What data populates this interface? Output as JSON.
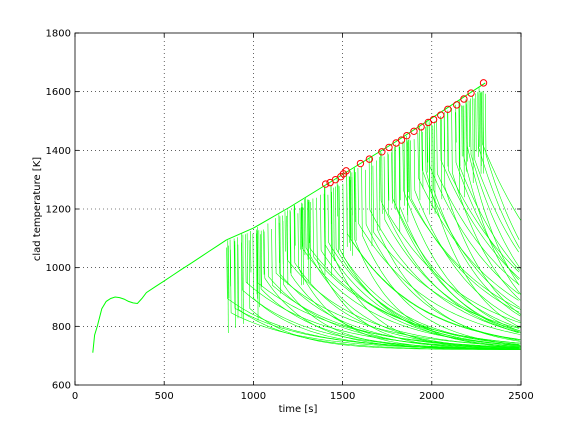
{
  "chart_data": {
    "type": "line",
    "title": "",
    "xlabel": "time [s]",
    "ylabel": "clad temperature [K]",
    "xlim": [
      0,
      2500
    ],
    "ylim": [
      600,
      1800
    ],
    "x_ticks": [
      0,
      500,
      1000,
      1500,
      2000,
      2500
    ],
    "y_ticks": [
      600,
      800,
      1000,
      1200,
      1400,
      1600,
      1800
    ],
    "x_tick_labels": [
      "0",
      "500",
      "1000",
      "1500",
      "2000",
      "2500"
    ],
    "y_tick_labels": [
      "600",
      "800",
      "1000",
      "1200",
      "1400",
      "1600",
      "1800"
    ],
    "grid": true,
    "legend": "none",
    "line_color": "#00ff00",
    "marker_color": "#ff0000",
    "common_series": {
      "x": [
        100,
        110,
        125,
        150,
        175,
        200,
        225,
        250,
        275,
        300,
        325,
        350,
        375,
        400,
        450,
        500,
        550,
        600,
        650,
        700,
        750,
        800,
        850
      ],
      "y": [
        710,
        770,
        800,
        860,
        885,
        895,
        900,
        898,
        893,
        885,
        880,
        878,
        895,
        915,
        935,
        955,
        975,
        995,
        1015,
        1035,
        1055,
        1075,
        1095
      ]
    },
    "envelope": {
      "x": [
        850,
        1000,
        1200,
        1400,
        1600,
        1800,
        2000,
        2200,
        2300
      ],
      "y": [
        1095,
        1135,
        1205,
        1280,
        1355,
        1430,
        1510,
        1590,
        1630
      ]
    },
    "burst_points": {
      "x": [
        1405,
        1430,
        1460,
        1490,
        1505,
        1520,
        1600,
        1650,
        1720,
        1760,
        1800,
        1830,
        1860,
        1900,
        1940,
        1980,
        2010,
        2050,
        2090,
        2140,
        2180,
        2220,
        2290
      ],
      "y": [
        1285,
        1290,
        1300,
        1310,
        1320,
        1330,
        1355,
        1370,
        1395,
        1410,
        1425,
        1435,
        1450,
        1465,
        1480,
        1495,
        1505,
        1520,
        1540,
        1555,
        1575,
        1595,
        1630
      ]
    },
    "cooldown_floor": 720,
    "fan_start_x": 850,
    "fan_end_x": 2300,
    "fan_curve_count": 70
  }
}
